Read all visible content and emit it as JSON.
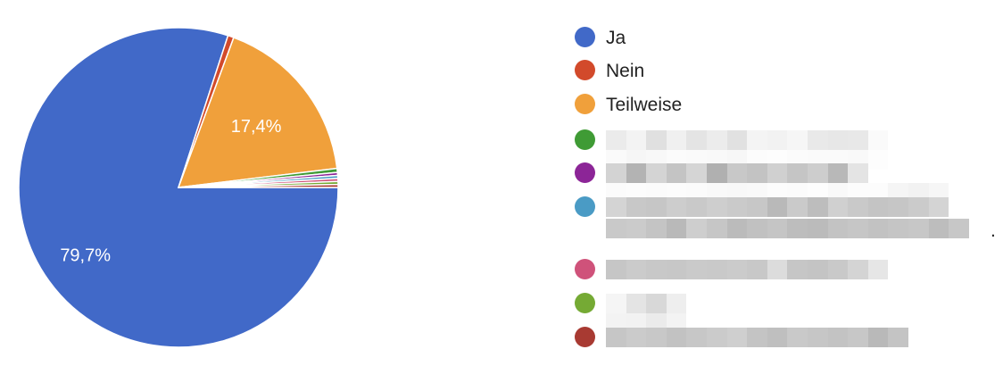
{
  "chart_data": {
    "type": "pie",
    "slices": [
      {
        "label": "Ja",
        "value": 79.7,
        "color": "#4169c8",
        "data_label": "79,7%"
      },
      {
        "label": "Nein",
        "value": 0.6,
        "color": "#d24a2b",
        "data_label": ""
      },
      {
        "label": "Teilweise",
        "value": 17.4,
        "color": "#f0a03b",
        "data_label": "17,4%"
      },
      {
        "label": "",
        "value": 0.4,
        "color": "#3f9b35",
        "data_label": ""
      },
      {
        "label": "",
        "value": 0.3,
        "color": "#8c2597",
        "data_label": ""
      },
      {
        "label": "",
        "value": 0.3,
        "color": "#4a9bc5",
        "data_label": ""
      },
      {
        "label": "",
        "value": 0.3,
        "color": "#cf527a",
        "data_label": ""
      },
      {
        "label": "",
        "value": 0.3,
        "color": "#75aa34",
        "data_label": ""
      },
      {
        "label": "",
        "value": 0.3,
        "color": "#a83a32",
        "data_label": ""
      }
    ],
    "legend_position": "right",
    "redacted_legend_entries": true
  },
  "legend": {
    "items": [
      {
        "label": "Ja",
        "color": "#4169c8"
      },
      {
        "label": "Nein",
        "color": "#d24a2b"
      },
      {
        "label": "Teilweise",
        "color": "#f0a03b"
      },
      {
        "label": "",
        "color": "#3f9b35"
      },
      {
        "label": "",
        "color": "#8c2597"
      },
      {
        "label": "",
        "color": "#4a9bc5"
      },
      {
        "label": "",
        "color": "#cf527a"
      },
      {
        "label": "",
        "color": "#75aa34"
      },
      {
        "label": "",
        "color": "#a83a32"
      }
    ]
  },
  "redaction": {
    "trailing_mark": "."
  }
}
